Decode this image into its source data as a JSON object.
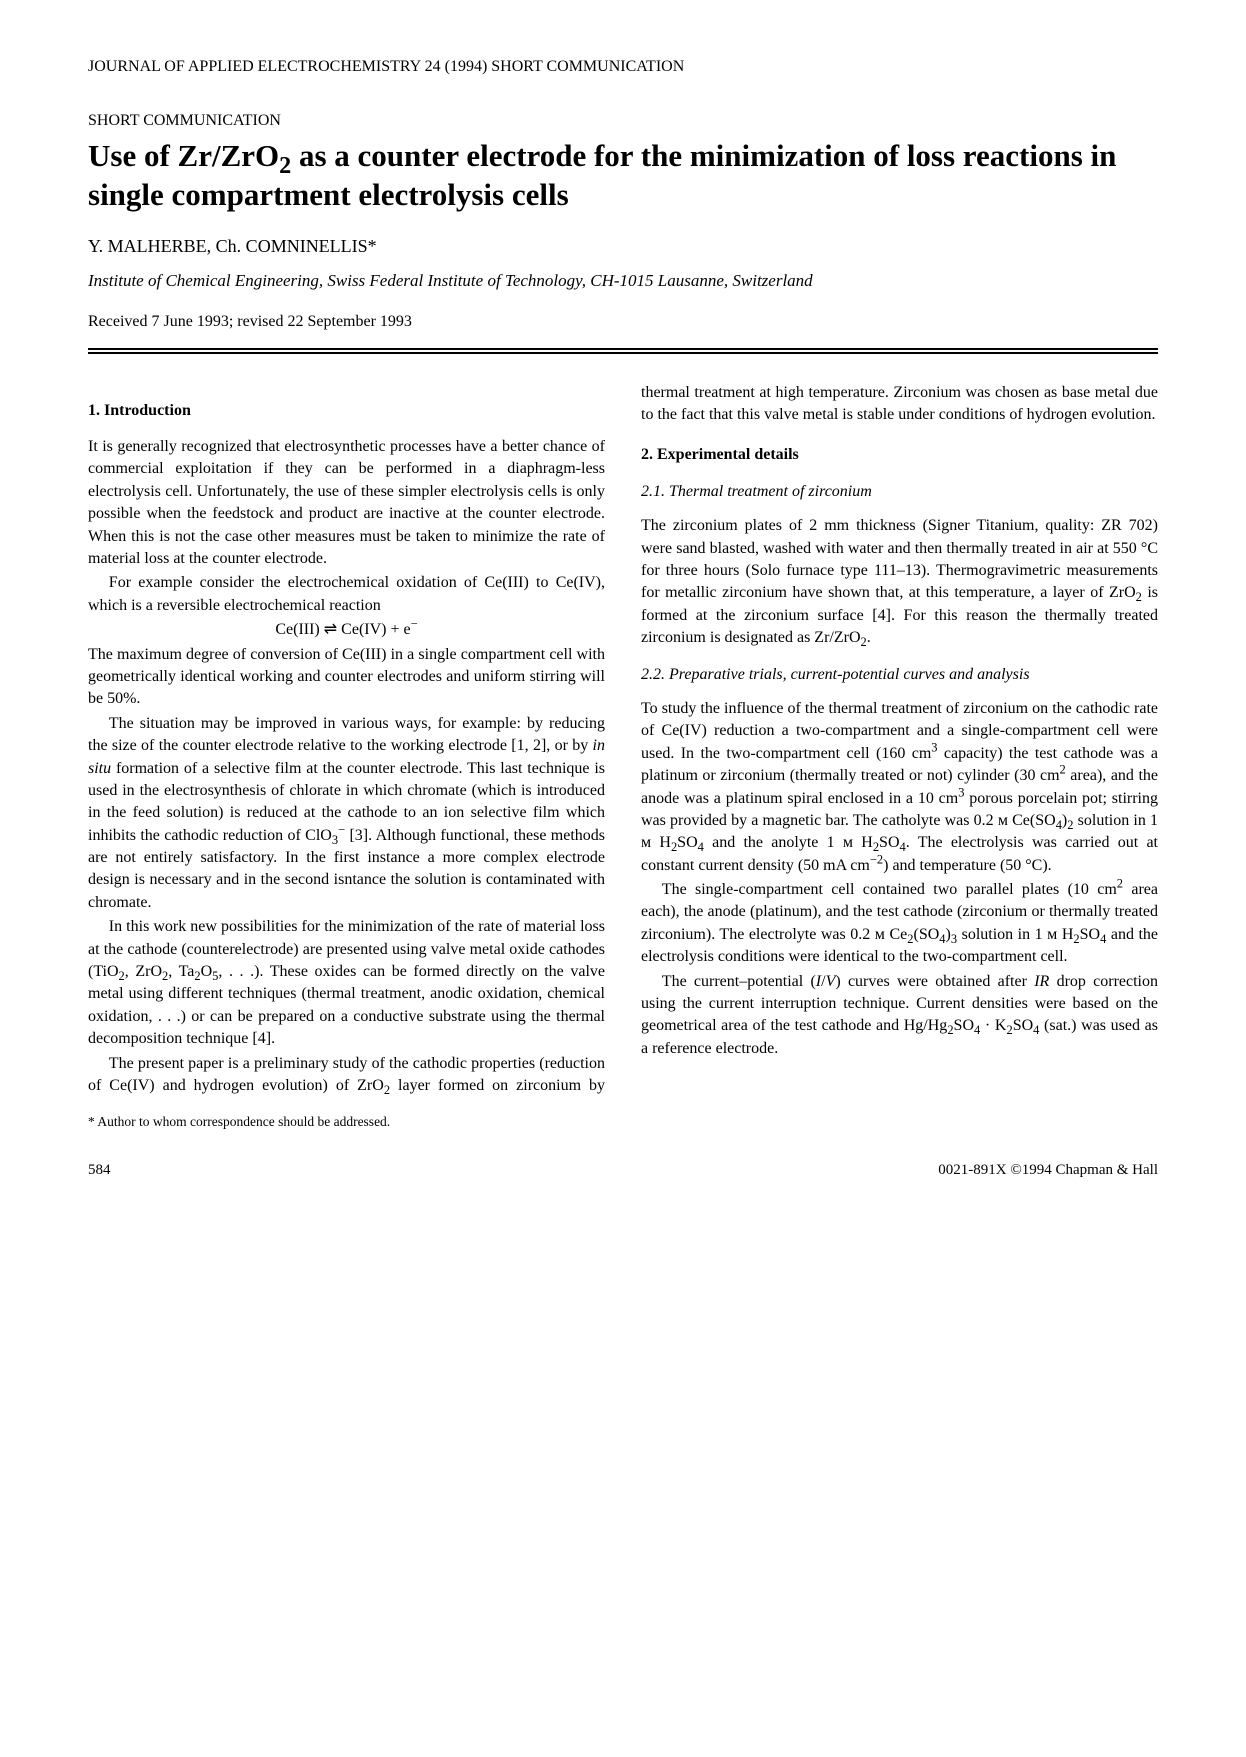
{
  "journal_header": "JOURNAL OF APPLIED ELECTROCHEMISTRY 24 (1994) SHORT COMMUNICATION",
  "document_type": "SHORT COMMUNICATION",
  "title_html": "Use of Zr/ZrO<sub>2</sub> as a counter electrode for the minimization of loss reactions in single compartment electrolysis cells",
  "authors": "Y. MALHERBE, Ch. COMNINELLIS*",
  "affiliation": "Institute of Chemical Engineering, Swiss Federal Institute of Technology, CH-1015 Lausanne, Switzerland",
  "received": "Received 7 June 1993; revised 22 September 1993",
  "section1": {
    "head": "1. Introduction",
    "p1": "It is generally recognized that electrosynthetic processes have a better chance of commercial exploitation if they can be performed in a diaphragm-less electrolysis cell. Unfortunately, the use of these simpler electrolysis cells is only possible when the feedstock and product are inactive at the counter electrode. When this is not the case other measures must be taken to minimize the rate of material loss at the counter electrode.",
    "p2": "For example consider the electrochemical oxidation of Ce(III) to Ce(IV), which is a reversible electrochemical reaction",
    "eqn_html": "Ce(III) ⇌ Ce(IV) + e<sup>−</sup>",
    "p3": "The maximum degree of conversion of Ce(III) in a single compartment cell with geometrically identical working and counter electrodes and uniform stirring will be 50%.",
    "p4_html": "The situation may be improved in various ways, for example: by reducing the size of the counter electrode relative to the working electrode [1, 2], or by <i>in situ</i> formation of a selective film at the counter electrode. This last technique is used in the electrosynthesis of chlorate in which chromate (which is introduced in the feed solution) is reduced at the cathode to an ion selective film which inhibits the cathodic reduction of ClO<sub>3</sub><sup>−</sup> [3]. Although functional, these methods are not entirely satisfactory. In the first instance a more complex electrode design is necessary and in the second isntance the solution is contaminated with chromate.",
    "p5_html": "In this work new possibilities for the minimization of the rate of material loss at the cathode (counterelectrode) are presented using valve metal oxide cathodes (TiO<sub>2</sub>, ZrO<sub>2</sub>, Ta<sub>2</sub>O<sub>5</sub>, . . .). These oxides can be formed directly on the valve metal using different techniques (thermal treatment, anodic oxidation, chemical oxidation, . . .) or can be prepared on a conductive substrate using the thermal decomposition technique [4].",
    "p6_html": "The present paper is a preliminary study of the cathodic properties (reduction of Ce(IV) and hydrogen evolution) of ZrO<sub>2</sub> layer formed on zirconium by thermal treatment at high temperature. Zirconium was chosen as base metal due to the fact that this valve metal is stable under conditions of hydrogen evolution."
  },
  "section2": {
    "head": "2. Experimental details",
    "sub1": {
      "head": "2.1. Thermal treatment of zirconium",
      "p1_html": "The zirconium plates of 2 mm thickness (Signer Titanium, quality: ZR 702) were sand blasted, washed with water and then thermally treated in air at 550 °C for three hours (Solo furnace type 111–13). Thermogravimetric measurements for metallic zirconium have shown that, at this temperature, a layer of ZrO<sub>2</sub> is formed at the zirconium surface [4]. For this reason the thermally treated zirconium is designated as Zr/ZrO<sub>2</sub>."
    },
    "sub2": {
      "head": "2.2. Preparative trials, current-potential curves and analysis",
      "p1_html": "To study the influence of the thermal treatment of zirconium on the cathodic rate of Ce(IV) reduction a two-compartment and a single-compartment cell were used. In the two-compartment cell (160 cm<sup>3</sup> capacity) the test cathode was a platinum or zirconium (thermally treated or not) cylinder (30 cm<sup>2</sup> area), and the anode was a platinum spiral enclosed in a 10 cm<sup>3</sup> porous porcelain pot; stirring was provided by a magnetic bar. The catholyte was 0.2 ᴍ Ce(SO<sub>4</sub>)<sub>2</sub> solution in 1 ᴍ H<sub>2</sub>SO<sub>4</sub> and the anolyte 1 ᴍ H<sub>2</sub>SO<sub>4</sub>. The electrolysis was carried out at constant current density (50 mA cm<sup>−2</sup>) and temperature (50 °C).",
      "p2_html": "The single-compartment cell contained two parallel plates (10 cm<sup>2</sup> area each), the anode (platinum), and the test cathode (zirconium or thermally treated zirconium). The electrolyte was 0.2 ᴍ Ce<sub>2</sub>(SO<sub>4</sub>)<sub>3</sub> solution in 1 ᴍ H<sub>2</sub>SO<sub>4</sub> and the electrolysis conditions were identical to the two-compartment cell.",
      "p3_html": "The current–potential (<i>I</i>/<i>V</i>) curves were obtained after <i>IR</i> drop correction using the current interruption technique. Current densities were based on the geometrical area of the test cathode and Hg/Hg<sub>2</sub>SO<sub>4</sub> · K<sub>2</sub>SO<sub>4</sub> (sat.) was used as a reference electrode."
    }
  },
  "footnote": "* Author to whom correspondence should be addressed.",
  "footer": {
    "page": "584",
    "issn": "0021-891X  ©1994 Chapman & Hall"
  }
}
